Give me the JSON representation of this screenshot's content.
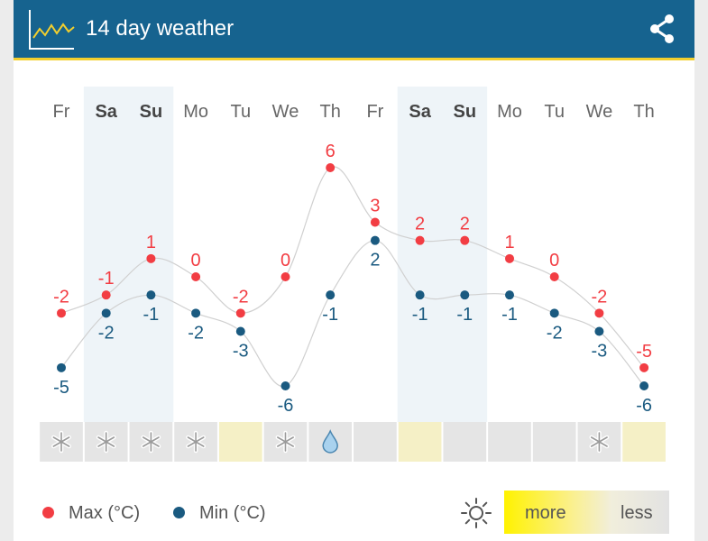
{
  "header": {
    "title": "14 day weather"
  },
  "legend": {
    "max_label": "Max (°C)",
    "min_label": "Min (°C)",
    "more_label": "more",
    "less_label": "less"
  },
  "colors": {
    "max": "#f23d43",
    "min": "#1a5a80",
    "header": "#16638f",
    "accent": "#f2cf2e",
    "weekend": "#eef4f8",
    "sun_cell": "#f5f0c6",
    "cell": "#e5e5e5"
  },
  "chart_data": {
    "type": "line",
    "categories": [
      "Fr",
      "Sa",
      "Su",
      "Mo",
      "Tu",
      "We",
      "Th",
      "Fr",
      "Sa",
      "Su",
      "Mo",
      "Tu",
      "We",
      "Th"
    ],
    "weekend": [
      false,
      true,
      true,
      false,
      false,
      false,
      false,
      false,
      true,
      true,
      false,
      false,
      false,
      false
    ],
    "series": [
      {
        "name": "Max (°C)",
        "values": [
          -2,
          -1,
          1,
          0,
          -2,
          0,
          6,
          3,
          2,
          2,
          1,
          0,
          -2,
          -5
        ]
      },
      {
        "name": "Min (°C)",
        "values": [
          -5,
          -2,
          -1,
          -2,
          -3,
          -6,
          -1,
          2,
          -1,
          -1,
          -1,
          -2,
          -3,
          -6
        ]
      }
    ],
    "ylim": [
      -6,
      6
    ],
    "conditions": [
      "snow-icon",
      "snow-icon",
      "snow-icon",
      "snow-icon",
      "sun",
      "snow-icon",
      "rain-icon",
      "none",
      "sun",
      "none",
      "none",
      "none",
      "snow-icon",
      "sun"
    ],
    "xlabel": "",
    "ylabel": ""
  }
}
